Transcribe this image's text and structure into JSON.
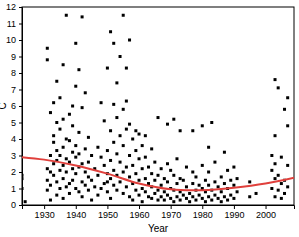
{
  "chart_data": {
    "type": "scatter",
    "x_label": "Year",
    "y_label": "C",
    "xlim": [
      1923,
      2009
    ],
    "xticks": [
      1930,
      1940,
      1950,
      1960,
      1970,
      1980,
      1990,
      2000
    ],
    "ylim": [
      0,
      12
    ],
    "yticks": [
      0,
      1,
      2,
      3,
      4,
      5,
      6,
      7,
      8,
      9,
      10,
      11,
      12
    ],
    "grid": false,
    "series": [
      {
        "type": "scatter",
        "color": "#000000",
        "marker": "square",
        "x": [
          1923,
          1923,
          1923,
          1924,
          1931,
          1931,
          1931,
          1931,
          1931,
          1932,
          1932,
          1932,
          1932,
          1932,
          1933,
          1933,
          1933,
          1933,
          1933,
          1934,
          1934,
          1934,
          1934,
          1934,
          1934,
          1935,
          1935,
          1935,
          1935,
          1935,
          1936,
          1936,
          1936,
          1936,
          1936,
          1936,
          1937,
          1937,
          1937,
          1937,
          1937,
          1938,
          1938,
          1938,
          1938,
          1938,
          1939,
          1939,
          1939,
          1939,
          1939,
          1940,
          1940,
          1940,
          1940,
          1940,
          1940,
          1941,
          1941,
          1941,
          1941,
          1941,
          1942,
          1942,
          1942,
          1942,
          1942,
          1943,
          1943,
          1943,
          1943,
          1944,
          1944,
          1944,
          1944,
          1945,
          1945,
          1945,
          1946,
          1946,
          1947,
          1947,
          1947,
          1948,
          1948,
          1948,
          1949,
          1949,
          1949,
          1950,
          1950,
          1950,
          1950,
          1950,
          1951,
          1951,
          1951,
          1951,
          1951,
          1952,
          1952,
          1952,
          1952,
          1952,
          1953,
          1953,
          1953,
          1953,
          1953,
          1954,
          1954,
          1954,
          1954,
          1955,
          1955,
          1955,
          1955,
          1955,
          1956,
          1956,
          1956,
          1956,
          1956,
          1957,
          1957,
          1957,
          1957,
          1957,
          1958,
          1958,
          1958,
          1958,
          1959,
          1959,
          1959,
          1959,
          1960,
          1960,
          1960,
          1960,
          1961,
          1961,
          1961,
          1961,
          1962,
          1962,
          1962,
          1962,
          1963,
          1963,
          1963,
          1964,
          1964,
          1964,
          1964,
          1965,
          1965,
          1965,
          1966,
          1966,
          1966,
          1966,
          1967,
          1967,
          1967,
          1968,
          1968,
          1968,
          1969,
          1969,
          1969,
          1969,
          1970,
          1970,
          1970,
          1971,
          1971,
          1971,
          1971,
          1972,
          1972,
          1972,
          1973,
          1973,
          1973,
          1973,
          1974,
          1974,
          1975,
          1975,
          1975,
          1976,
          1976,
          1977,
          1977,
          1977,
          1977,
          1978,
          1978,
          1978,
          1979,
          1979,
          1980,
          1980,
          1980,
          1980,
          1981,
          1981,
          1981,
          1982,
          1982,
          1982,
          1982,
          1983,
          1983,
          1983,
          1984,
          1984,
          1984,
          1985,
          1985,
          1986,
          1986,
          1986,
          1987,
          1987,
          1987,
          1988,
          1988,
          1988,
          1989,
          1989,
          1990,
          1990,
          1990,
          1991,
          1991,
          1995,
          1995,
          1997,
          2002,
          2002,
          2002,
          2003,
          2003,
          2003,
          2003,
          2003,
          2004,
          2004,
          2004,
          2005,
          2005,
          2005,
          2006,
          2006,
          2006,
          2007,
          2007,
          2007,
          2007
        ],
        "values": [
          1.8,
          1.0,
          1.6,
          0.2,
          0.9,
          1.5,
          2.2,
          9.5,
          8.8,
          1.2,
          2.0,
          3.0,
          0.3,
          5.6,
          1.8,
          2.5,
          4.2,
          6.2,
          3.8,
          0.6,
          1.4,
          2.7,
          3.3,
          5.0,
          7.5,
          2.1,
          3.0,
          4.6,
          1.0,
          6.5,
          1.6,
          2.4,
          3.5,
          5.2,
          0.4,
          8.5,
          2.0,
          2.8,
          11.5,
          4.0,
          1.1,
          1.3,
          2.6,
          3.9,
          5.5,
          0.7,
          2.2,
          3.2,
          4.8,
          1.5,
          6.0,
          1.0,
          1.9,
          2.9,
          3.6,
          7.2,
          9.8,
          0.8,
          2.3,
          3.1,
          4.4,
          8.2,
          1.4,
          2.5,
          11.4,
          5.9,
          0.5,
          1.2,
          2.0,
          3.4,
          6.8,
          0.9,
          1.7,
          2.6,
          4.1,
          1.5,
          3.0,
          0.3,
          1.1,
          2.2,
          0.6,
          1.8,
          3.5,
          1.0,
          2.9,
          6.2,
          1.3,
          2.4,
          5.1,
          0.8,
          1.9,
          3.3,
          8.3,
          1.4,
          1.6,
          2.7,
          4.5,
          10.5,
          0.4,
          1.2,
          2.1,
          3.8,
          9.8,
          6.1,
          1.8,
          3.1,
          5.3,
          0.9,
          7.4,
          1.4,
          2.6,
          4.2,
          9.0,
          0.7,
          2.0,
          3.6,
          5.8,
          11.5,
          1.1,
          2.3,
          4.6,
          6.3,
          8.3,
          0.5,
          1.7,
          3.0,
          4.9,
          10.0,
          1.3,
          2.4,
          4.0,
          0.3,
          0.9,
          1.9,
          3.3,
          4.5,
          0.6,
          1.5,
          2.8,
          4.3,
          1.0,
          2.2,
          3.6,
          0.2,
          0.8,
          1.6,
          2.9,
          4.2,
          0.5,
          1.3,
          2.3,
          0.4,
          1.1,
          1.9,
          3.4,
          0.7,
          1.5,
          2.6,
          0.3,
          0.9,
          1.8,
          5.3,
          0.5,
          1.2,
          2.2,
          0.3,
          0.8,
          1.6,
          0.6,
          1.4,
          2.5,
          4.9,
          0.4,
          1.0,
          2.1,
          0.2,
          0.9,
          1.8,
          5.2,
          0.5,
          1.3,
          2.8,
          0.3,
          0.8,
          1.6,
          4.5,
          0.6,
          1.5,
          0.4,
          1.1,
          2.3,
          0.2,
          0.7,
          0.5,
          1.3,
          2.0,
          4.5,
          0.3,
          0.9,
          1.7,
          0.6,
          1.2,
          0.4,
          1.0,
          2.4,
          4.8,
          0.2,
          0.8,
          1.5,
          0.5,
          1.2,
          2.0,
          3.5,
          0.3,
          0.9,
          5.0,
          0.6,
          1.4,
          2.6,
          0.4,
          1.1,
          0.2,
          0.8,
          1.7,
          0.5,
          1.3,
          3.2,
          0.3,
          1.0,
          2.1,
          0.6,
          1.5,
          0.4,
          1.2,
          2.3,
          0.8,
          1.6,
          0.5,
          1.4,
          0.7,
          1.0,
          2.1,
          3.0,
          0.5,
          1.6,
          2.5,
          4.2,
          7.6,
          0.9,
          1.8,
          7.1,
          0.4,
          1.3,
          2.9,
          0.7,
          1.5,
          5.8,
          1.1,
          2.4,
          6.5,
          4.8
        ]
      },
      {
        "type": "line",
        "color": "#e0403c",
        "line_style": "solid",
        "x": [
          1923,
          1930,
          1940,
          1950,
          1960,
          1970,
          1980,
          1990,
          2000,
          2009
        ],
        "values": [
          2.9,
          2.75,
          2.4,
          1.9,
          1.3,
          0.95,
          0.9,
          1.05,
          1.3,
          1.65
        ]
      }
    ]
  }
}
